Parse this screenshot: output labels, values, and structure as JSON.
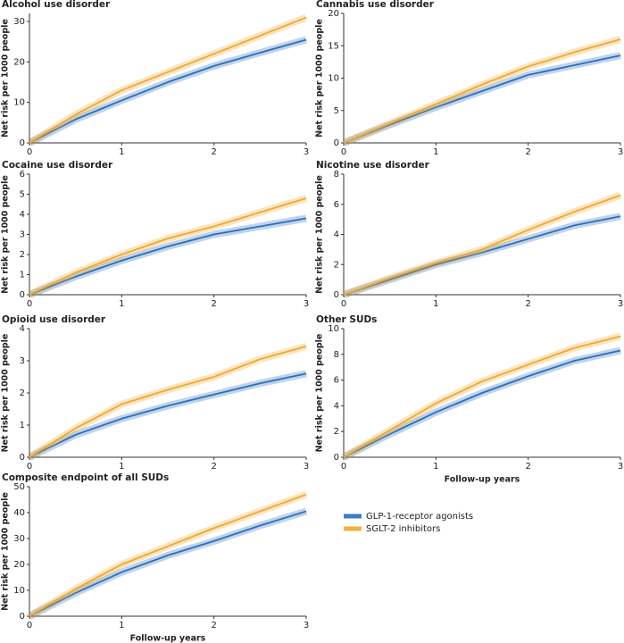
{
  "chart_data": [
    {
      "type": "line",
      "title": "Alcohol use disorder",
      "ylabel": "Net risk per 1000 people",
      "x": [
        0,
        0.5,
        1,
        1.5,
        2,
        2.5,
        3
      ],
      "xlim": [
        0,
        3
      ],
      "xticks": [
        0,
        1,
        2,
        3
      ],
      "ylim": [
        0,
        32
      ],
      "yticks": [
        0,
        10,
        20,
        30
      ],
      "series": [
        {
          "values": [
            0,
            5.8,
            10.5,
            15,
            19,
            22.3,
            25.5
          ]
        },
        {
          "values": [
            0,
            7,
            13,
            17.5,
            22,
            26.5,
            31
          ]
        }
      ]
    },
    {
      "type": "line",
      "title": "Cannabis use disorder",
      "ylabel": "Net risk per 1000 people",
      "x": [
        0,
        0.5,
        1,
        1.5,
        2,
        2.5,
        3
      ],
      "xlim": [
        0,
        3
      ],
      "xticks": [
        0,
        1,
        2,
        3
      ],
      "ylim": [
        0,
        20
      ],
      "yticks": [
        0,
        5,
        10,
        15,
        20
      ],
      "series": [
        {
          "values": [
            0,
            2.8,
            5.5,
            8,
            10.5,
            12,
            13.5
          ]
        },
        {
          "values": [
            0,
            3,
            6,
            9,
            11.8,
            14,
            16
          ]
        }
      ]
    },
    {
      "type": "line",
      "title": "Cocaine use disorder",
      "ylabel": "Net risk per 1000 people",
      "x": [
        0,
        0.5,
        1,
        1.5,
        2,
        2.5,
        3
      ],
      "xlim": [
        0,
        3
      ],
      "xticks": [
        0,
        1,
        2,
        3
      ],
      "ylim": [
        0,
        6
      ],
      "yticks": [
        0,
        1,
        2,
        3,
        4,
        5,
        6
      ],
      "series": [
        {
          "values": [
            0,
            0.9,
            1.7,
            2.4,
            3,
            3.4,
            3.8
          ]
        },
        {
          "values": [
            0,
            1.1,
            2,
            2.8,
            3.4,
            4.1,
            4.8
          ]
        }
      ]
    },
    {
      "type": "line",
      "title": "Nicotine use disorder",
      "ylabel": "Net risk per 1000 people",
      "x": [
        0,
        0.5,
        1,
        1.5,
        2,
        2.5,
        3
      ],
      "xlim": [
        0,
        3
      ],
      "xticks": [
        0,
        1,
        2,
        3
      ],
      "ylim": [
        0,
        8
      ],
      "yticks": [
        0,
        2,
        4,
        6,
        8
      ],
      "series": [
        {
          "values": [
            0,
            1,
            2,
            2.8,
            3.7,
            4.6,
            5.2
          ]
        },
        {
          "values": [
            0,
            1.1,
            2.1,
            3,
            4.3,
            5.5,
            6.6
          ]
        }
      ]
    },
    {
      "type": "line",
      "title": "Opioid use disorder",
      "ylabel": "Net risk per 1000 people",
      "x": [
        0,
        0.5,
        1,
        1.5,
        2,
        2.5,
        3
      ],
      "xlim": [
        0,
        3
      ],
      "xticks": [
        0,
        1,
        2,
        3
      ],
      "ylim": [
        0,
        4
      ],
      "yticks": [
        0,
        1,
        2,
        3,
        4
      ],
      "series": [
        {
          "values": [
            0,
            0.7,
            1.2,
            1.6,
            1.95,
            2.3,
            2.6
          ]
        },
        {
          "values": [
            0,
            0.9,
            1.65,
            2.1,
            2.5,
            3.05,
            3.45
          ]
        }
      ]
    },
    {
      "type": "line",
      "title": "Other SUDs",
      "ylabel": "Net risk per 1000 people",
      "xlabel": "Follow-up years",
      "x": [
        0,
        0.5,
        1,
        1.5,
        2,
        2.5,
        3
      ],
      "xlim": [
        0,
        3
      ],
      "xticks": [
        0,
        1,
        2,
        3
      ],
      "ylim": [
        0,
        10
      ],
      "yticks": [
        0,
        2,
        4,
        6,
        8,
        10
      ],
      "series": [
        {
          "values": [
            0,
            1.8,
            3.5,
            5,
            6.3,
            7.5,
            8.3
          ]
        },
        {
          "values": [
            0,
            2.1,
            4.2,
            5.9,
            7.2,
            8.5,
            9.4
          ]
        }
      ]
    },
    {
      "type": "line",
      "title": "Composite endpoint of all SUDs",
      "ylabel": "Net risk per 1000 people",
      "xlabel": "Follow-up years",
      "x": [
        0,
        0.5,
        1,
        1.5,
        2,
        2.5,
        3
      ],
      "xlim": [
        0,
        3
      ],
      "xticks": [
        0,
        1,
        2,
        3
      ],
      "ylim": [
        0,
        50
      ],
      "yticks": [
        0,
        10,
        20,
        30,
        40,
        50
      ],
      "series": [
        {
          "values": [
            0,
            9,
            17,
            23.5,
            29,
            35,
            40.5
          ]
        },
        {
          "values": [
            0,
            10.5,
            20,
            27,
            34,
            40.5,
            47
          ]
        }
      ]
    }
  ],
  "legend": [
    {
      "name": "GLP-1-receptor agonists",
      "color": "#2a6ebb"
    },
    {
      "name": "SGLT-2 inhibitors",
      "color": "#f0a830"
    }
  ]
}
